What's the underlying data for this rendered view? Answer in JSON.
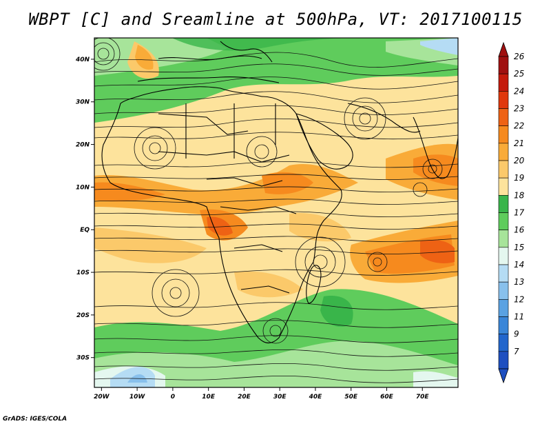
{
  "title": "WBPT [C] and Sreamline at 500hPa, VT: 2017100115",
  "credit": "GrADS: IGES/COLA",
  "map": {
    "lon_range": [
      -22,
      80
    ],
    "lat_range": [
      -37,
      45
    ],
    "lon_ticks": [
      {
        "value": -20,
        "label": "20W"
      },
      {
        "value": -10,
        "label": "10W"
      },
      {
        "value": 0,
        "label": "0"
      },
      {
        "value": 10,
        "label": "10E"
      },
      {
        "value": 20,
        "label": "20E"
      },
      {
        "value": 30,
        "label": "30E"
      },
      {
        "value": 40,
        "label": "40E"
      },
      {
        "value": 50,
        "label": "50E"
      },
      {
        "value": 60,
        "label": "60E"
      },
      {
        "value": 70,
        "label": "70E"
      }
    ],
    "lat_ticks": [
      {
        "value": 40,
        "label": "40N"
      },
      {
        "value": 30,
        "label": "30N"
      },
      {
        "value": 20,
        "label": "20N"
      },
      {
        "value": 10,
        "label": "10N"
      },
      {
        "value": 0,
        "label": "EQ"
      },
      {
        "value": -10,
        "label": "10S"
      },
      {
        "value": -20,
        "label": "20S"
      },
      {
        "value": -30,
        "label": "30S"
      }
    ]
  },
  "colorbar": {
    "levels": [
      {
        "label": "26",
        "color": "#a01010"
      },
      {
        "label": "25",
        "color": "#c41a0c"
      },
      {
        "label": "24",
        "color": "#e0380c"
      },
      {
        "label": "23",
        "color": "#ee6214"
      },
      {
        "label": "22",
        "color": "#f68a1e"
      },
      {
        "label": "21",
        "color": "#f9ab38"
      },
      {
        "label": "20",
        "color": "#fbc96a"
      },
      {
        "label": "19",
        "color": "#fde39c"
      },
      {
        "label": "18",
        "color": "#39b54a"
      },
      {
        "label": "17",
        "color": "#5fcc5c"
      },
      {
        "label": "16",
        "color": "#a7e49a"
      },
      {
        "label": "15",
        "color": "#e4f7ef"
      },
      {
        "label": "14",
        "color": "#b5dcf4"
      },
      {
        "label": "13",
        "color": "#88c0ec"
      },
      {
        "label": "12",
        "color": "#5aa2e2"
      },
      {
        "label": "11",
        "color": "#3a86d8"
      },
      {
        "label": "9",
        "color": "#2266cc"
      },
      {
        "label": "7",
        "color": "#1e4fc0"
      }
    ]
  }
}
